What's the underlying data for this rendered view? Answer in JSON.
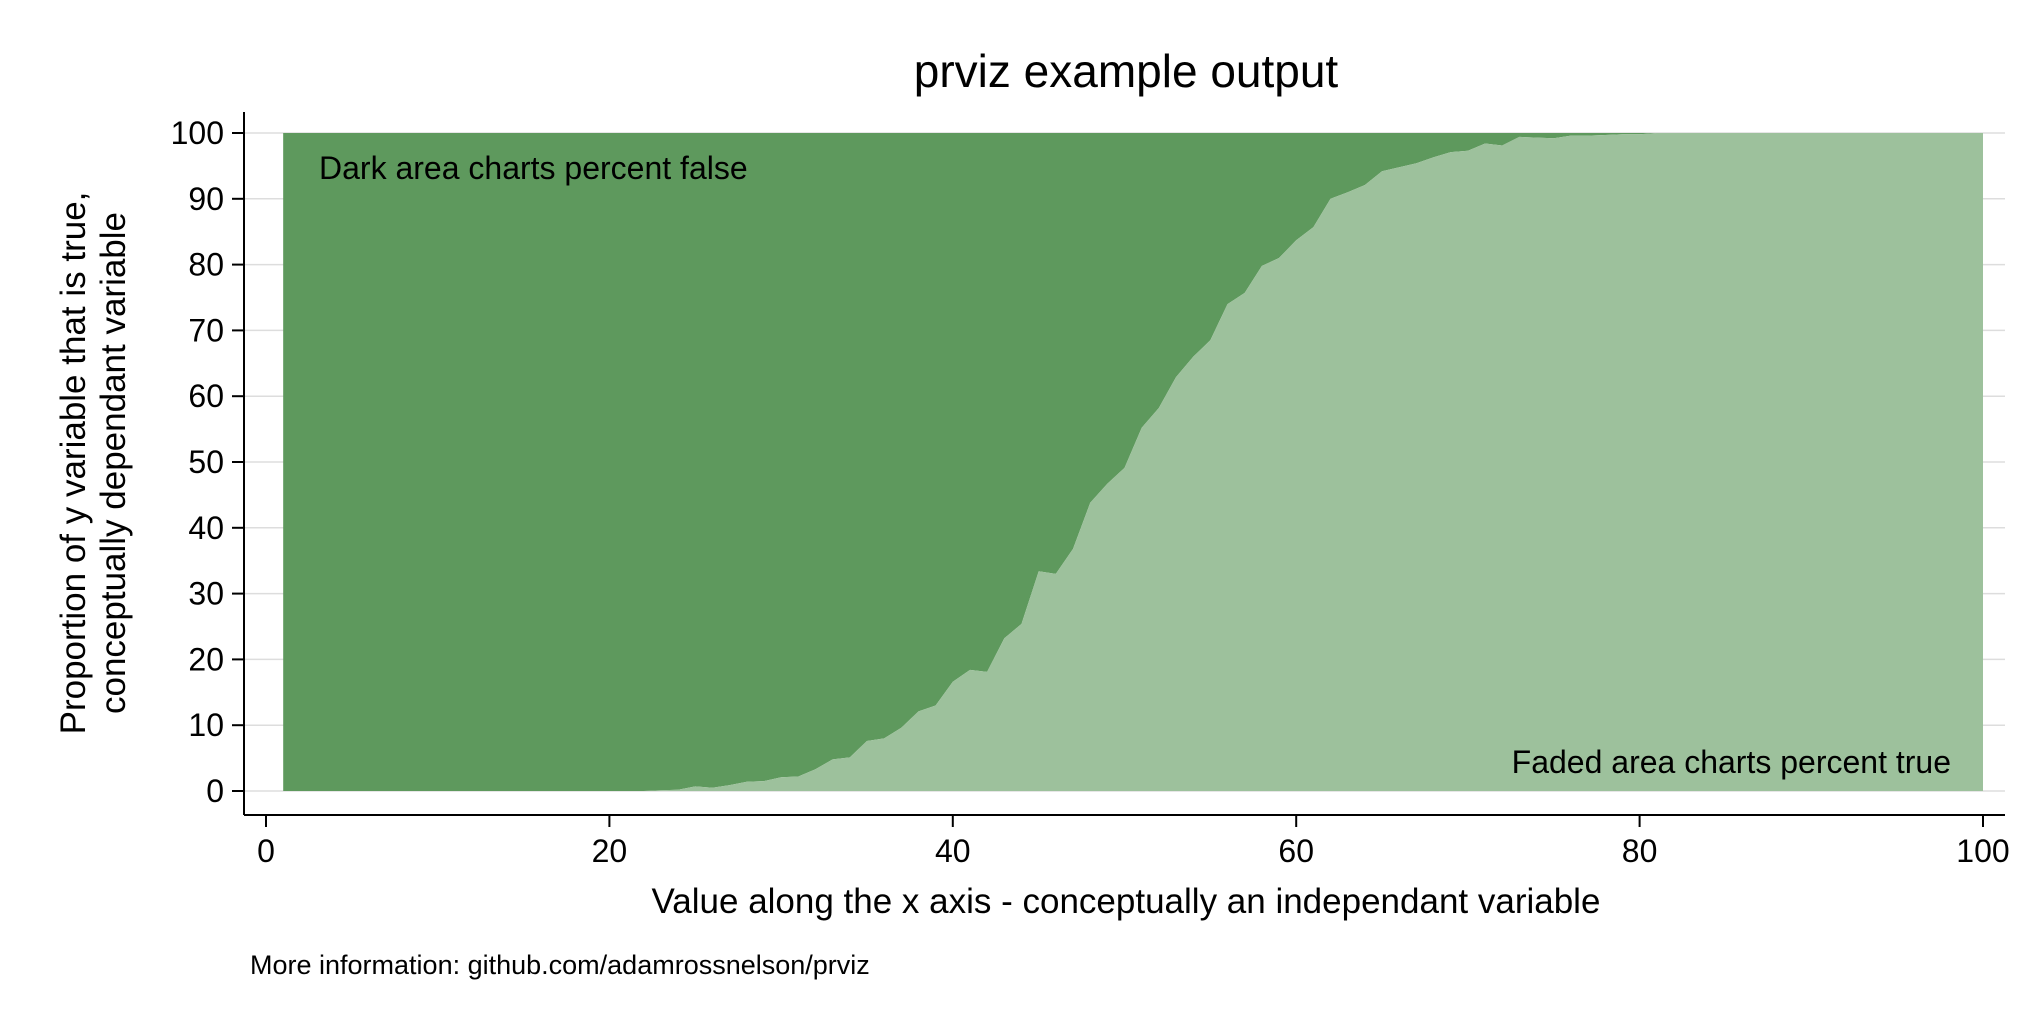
{
  "chart_data": {
    "type": "area",
    "title": "prviz example output",
    "xlabel": "Value along the x axis - conceptually an independant variable",
    "ylabel_lines": [
      "Proportion of y variable that is true,",
      "conceptually dependant variable"
    ],
    "note": "More information: github.com/adamrossnelson/prviz",
    "xlim": [
      0,
      100
    ],
    "ylim": [
      0,
      100
    ],
    "xticks": [
      0,
      20,
      40,
      60,
      80,
      100
    ],
    "yticks": [
      0,
      10,
      20,
      30,
      40,
      50,
      60,
      70,
      80,
      90,
      100
    ],
    "grid": "horizontal",
    "annotations": {
      "false_area": "Dark area charts percent false",
      "true_area": "Faded area charts percent true"
    },
    "colors": {
      "false_area": "#5e995d",
      "true_area": "#9dc19c",
      "grid": "#dddddd",
      "axis": "#000000"
    },
    "series": [
      {
        "x": [
          1,
          2,
          3,
          4,
          5,
          6,
          7,
          8,
          9,
          10,
          11,
          12,
          13,
          14,
          15,
          16,
          17,
          18,
          19,
          20,
          21,
          22,
          23,
          24,
          25,
          26,
          27,
          28,
          29,
          30,
          31,
          32,
          33,
          34,
          35,
          36,
          37,
          38,
          39,
          40,
          41,
          42,
          43,
          44,
          45,
          46,
          47,
          48,
          49,
          50,
          51,
          52,
          53,
          54,
          55,
          56,
          57,
          58,
          59,
          60,
          61,
          62,
          63,
          64,
          65,
          66,
          67,
          68,
          69,
          70,
          71,
          72,
          73,
          74,
          75,
          76,
          77,
          78,
          79,
          80,
          81,
          82,
          83,
          84,
          85,
          86,
          87,
          88,
          89,
          90,
          91,
          92,
          93,
          94,
          95,
          96,
          97,
          98,
          99,
          100
        ],
        "values": [
          0,
          0,
          0,
          0,
          0,
          0,
          0,
          0,
          0,
          0,
          0,
          0,
          0,
          0,
          0,
          0,
          0,
          0,
          0,
          0,
          0,
          0,
          0.1,
          0.2,
          0.7,
          0.5,
          0.9,
          1.4,
          1.5,
          2.1,
          2.2,
          3.3,
          4.8,
          5.1,
          7.6,
          8.0,
          9.6,
          12.1,
          13.0,
          16.6,
          18.4,
          18.1,
          23.2,
          25.4,
          33.4,
          33.0,
          36.8,
          43.8,
          46.7,
          49.1,
          55.2,
          58.2,
          62.9,
          66.0,
          68.5,
          74.0,
          75.7,
          79.8,
          81.0,
          83.7,
          85.7,
          90.0,
          91.0,
          92.1,
          94.2,
          94.8,
          95.4,
          96.3,
          97.1,
          97.3,
          98.4,
          98.1,
          99.4,
          99.3,
          99.2,
          99.6,
          99.6,
          99.7,
          99.8,
          99.8,
          100,
          100,
          100,
          100,
          100,
          100,
          100,
          100,
          100,
          100,
          100,
          100,
          100,
          100,
          100,
          100,
          100,
          100,
          100,
          100
        ]
      }
    ]
  }
}
